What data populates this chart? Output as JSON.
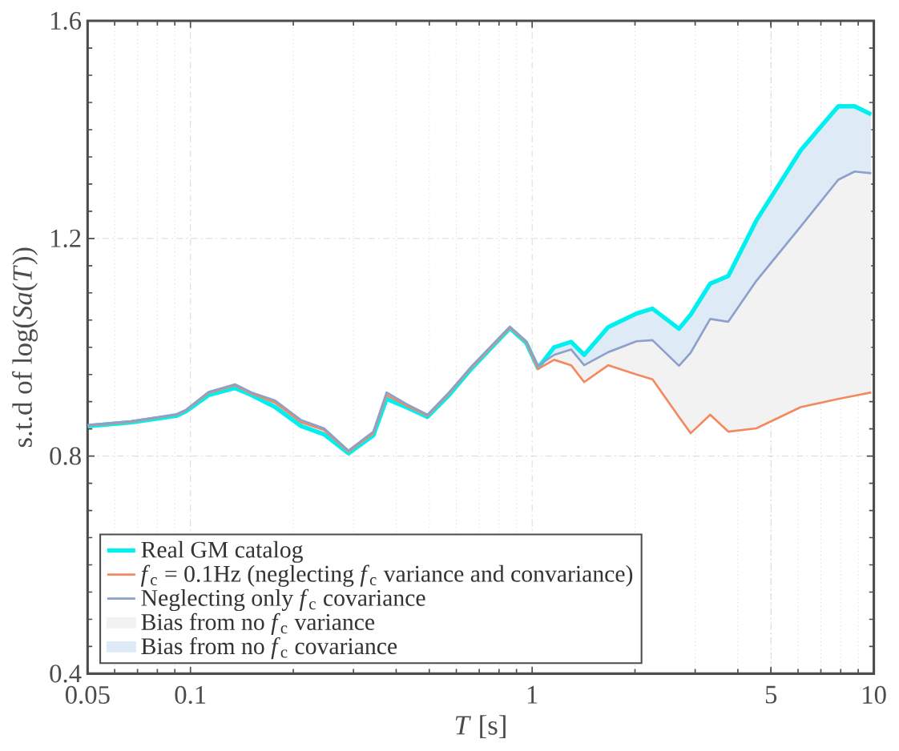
{
  "chart_data": {
    "type": "line",
    "xlabel": "*T* [s]",
    "ylabel": "s.t.d of log(*Sa*(*T*))",
    "log": "x",
    "grid": true,
    "legend": "bottom",
    "marker": "none",
    "line_style": "solid",
    "xlim": [
      0.05,
      10
    ],
    "ylim": [
      0.4,
      1.6
    ],
    "xticks": [
      0.05,
      0.1,
      1,
      5,
      10
    ],
    "yticks": [
      0.4,
      0.8,
      1.2,
      1.6
    ],
    "x": [
      0.05,
      0.067,
      0.091,
      0.097,
      0.113,
      0.135,
      0.151,
      0.177,
      0.211,
      0.246,
      0.29,
      0.343,
      0.375,
      0.428,
      0.494,
      0.571,
      0.667,
      0.861,
      0.961,
      1.04,
      1.16,
      1.3,
      1.42,
      1.67,
      2.02,
      2.25,
      2.69,
      2.91,
      3.32,
      3.75,
      4.53,
      6.11,
      7.87,
      8.79,
      9.83
    ],
    "series": [
      {
        "name": "Real GM catalog",
        "color": "#00f0f0",
        "values": [
          0.855,
          0.862,
          0.874,
          0.882,
          0.912,
          0.925,
          0.912,
          0.89,
          0.855,
          0.84,
          0.805,
          0.838,
          0.905,
          0.89,
          0.872,
          0.912,
          0.962,
          1.035,
          1.008,
          0.962,
          1.0,
          1.01,
          0.986,
          1.037,
          1.062,
          1.071,
          1.034,
          1.06,
          1.117,
          1.131,
          1.233,
          1.362,
          1.443,
          1.443,
          1.428
        ]
      },
      {
        "name": "*f*$_{c}$ = 0.1Hz (neglecting *f*$_{c}$ variance and convariance)",
        "color": "#f4895f",
        "values": [
          0.856,
          0.863,
          0.876,
          0.884,
          0.916,
          0.93,
          0.915,
          0.898,
          0.862,
          0.848,
          0.808,
          0.842,
          0.912,
          0.893,
          0.874,
          0.915,
          0.964,
          1.036,
          1.009,
          0.96,
          0.977,
          0.967,
          0.936,
          0.967,
          0.95,
          0.941,
          0.872,
          0.842,
          0.876,
          0.845,
          0.851,
          0.89,
          0.905,
          0.911,
          0.917
        ]
      },
      {
        "name": "Neglecting only *f*$_{c}$ covariance",
        "color": "#8da0cb",
        "values": [
          0.857,
          0.864,
          0.877,
          0.885,
          0.918,
          0.932,
          0.917,
          0.902,
          0.866,
          0.851,
          0.81,
          0.845,
          0.917,
          0.896,
          0.876,
          0.917,
          0.966,
          1.038,
          1.011,
          0.966,
          0.986,
          0.996,
          0.967,
          0.991,
          1.011,
          1.013,
          0.966,
          0.99,
          1.052,
          1.047,
          1.122,
          1.222,
          1.308,
          1.323,
          1.32
        ]
      },
      {
        "name": "Bias from no *f*$_{c}$ variance",
        "type": "area",
        "color": "#f2f2f2",
        "values": [
          null,
          null,
          null,
          null,
          null,
          null,
          null,
          null,
          null,
          null,
          null,
          null,
          null,
          null,
          null,
          null,
          null,
          null,
          null,
          null,
          null,
          null,
          null,
          null,
          null,
          null,
          null,
          null,
          null,
          null,
          null,
          null,
          null,
          null,
          null
        ],
        "lower": [
          0.856,
          0.863,
          0.876,
          0.884,
          0.916,
          0.93,
          0.915,
          0.898,
          0.862,
          0.848,
          0.808,
          0.842,
          0.912,
          0.893,
          0.874,
          0.915,
          0.964,
          1.036,
          1.009,
          0.96,
          0.977,
          0.967,
          0.936,
          0.967,
          0.95,
          0.941,
          0.872,
          0.842,
          0.876,
          0.845,
          0.851,
          0.89,
          0.905,
          0.911,
          0.917
        ],
        "upper": [
          0.857,
          0.864,
          0.877,
          0.885,
          0.918,
          0.932,
          0.917,
          0.902,
          0.866,
          0.851,
          0.81,
          0.845,
          0.917,
          0.896,
          0.876,
          0.917,
          0.966,
          1.038,
          1.011,
          0.966,
          0.986,
          0.996,
          0.967,
          0.991,
          1.011,
          1.013,
          0.966,
          0.99,
          1.052,
          1.047,
          1.122,
          1.222,
          1.308,
          1.323,
          1.32
        ]
      },
      {
        "name": "Bias from no *f*$_{c}$ covariance",
        "type": "area",
        "color": "#deebf7",
        "values": [
          null,
          null,
          null,
          null,
          null,
          null,
          null,
          null,
          null,
          null,
          null,
          null,
          null,
          null,
          null,
          null,
          null,
          null,
          null,
          null,
          null,
          null,
          null,
          null,
          null,
          null,
          null,
          null,
          null,
          null,
          null,
          null,
          null,
          null,
          null
        ],
        "lower": [
          0.857,
          0.864,
          0.877,
          0.885,
          0.918,
          0.932,
          0.917,
          0.902,
          0.866,
          0.851,
          0.81,
          0.845,
          0.917,
          0.896,
          0.876,
          0.917,
          0.966,
          1.038,
          1.011,
          0.966,
          0.986,
          0.996,
          0.967,
          0.991,
          1.011,
          1.013,
          0.966,
          0.99,
          1.052,
          1.047,
          1.122,
          1.222,
          1.308,
          1.323,
          1.32
        ],
        "upper": [
          0.855,
          0.862,
          0.874,
          0.882,
          0.912,
          0.925,
          0.912,
          0.89,
          0.855,
          0.84,
          0.805,
          0.838,
          0.905,
          0.89,
          0.872,
          0.912,
          0.962,
          1.035,
          1.008,
          0.962,
          1.0,
          1.01,
          0.986,
          1.037,
          1.062,
          1.071,
          1.034,
          1.06,
          1.117,
          1.131,
          1.233,
          1.362,
          1.443,
          1.443,
          1.428
        ]
      }
    ]
  }
}
